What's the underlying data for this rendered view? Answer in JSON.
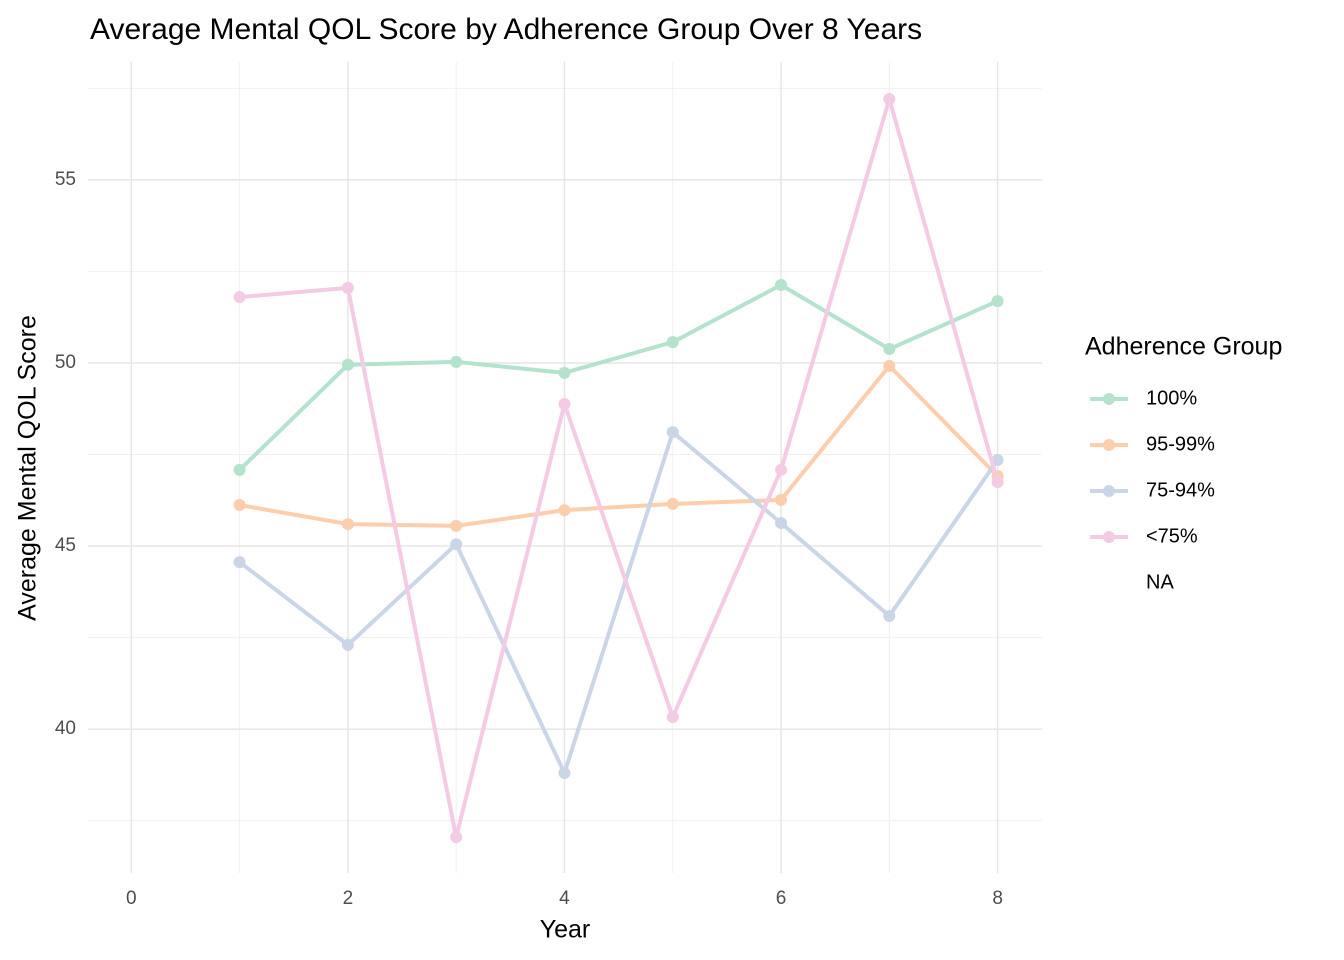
{
  "chart_data": {
    "type": "line",
    "title": "Average Mental QOL Score by Adherence Group Over 8 Years",
    "x_label": "Year",
    "y_label": "Average Mental QOL Score",
    "legend_title": "Adherence Group",
    "legend_position": "right",
    "x": [
      1,
      2,
      3,
      4,
      5,
      6,
      7,
      8
    ],
    "series": [
      {
        "name": "100%",
        "color": "#b3e2cd",
        "values": [
          47.08,
          49.95,
          50.03,
          49.73,
          50.57,
          52.13,
          50.38,
          51.69
        ]
      },
      {
        "name": "95-99%",
        "color": "#fdcdac",
        "values": [
          46.12,
          45.6,
          45.55,
          45.98,
          46.15,
          46.26,
          49.92,
          46.91
        ]
      },
      {
        "name": "75-94%",
        "color": "#cbd5e8",
        "values": [
          44.56,
          42.3,
          45.05,
          38.8,
          48.11,
          45.63,
          43.09,
          47.35
        ]
      },
      {
        "name": "<75%",
        "color": "#f4cae4",
        "values": [
          51.8,
          52.05,
          37.05,
          48.88,
          40.33,
          47.08,
          57.21,
          46.75
        ]
      },
      {
        "name": "NA",
        "values": [
          null,
          null,
          null,
          null,
          null,
          null,
          null,
          null
        ]
      }
    ],
    "xlim": [
      -0.4,
      8.41
    ],
    "xticks": [
      0,
      2,
      4,
      6,
      8
    ],
    "x_minor_ticks": [
      1,
      3,
      5,
      7
    ],
    "ylim": [
      36.07,
      58.22
    ],
    "yticks": [
      40,
      45,
      50,
      55
    ],
    "y_minor_ticks": [
      37.5,
      42.5,
      47.5,
      52.5,
      57.5
    ],
    "grid": true
  }
}
